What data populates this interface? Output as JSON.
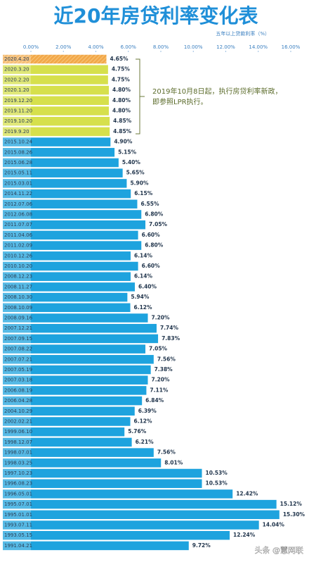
{
  "chart_data": {
    "type": "hbar",
    "title": "近20年房贷利率变化表",
    "subtitle": "五年以上贷款利率（%）",
    "annotation": [
      "2019年10月8日起，执行房贷利率新政，",
      "即参照LPR执行。"
    ],
    "watermark": "头条 @慧网联",
    "categories": [
      "2020.4.20",
      "2020.3.20",
      "2020.2.20",
      "2020.1.20",
      "2019.12.20",
      "2019.11.20",
      "2019.10.20",
      "2019.9.20",
      "2015.10.24",
      "2015.08.26",
      "2015.06.28",
      "2015.05.11",
      "2015.03.01",
      "2014.11.22",
      "2012.07.06",
      "2012.06.08",
      "2011.07.07",
      "2011.04.06",
      "2011.02.09",
      "2010.12.26",
      "2010.10.20",
      "2008.12.23",
      "2008.11.27",
      "2008.10.30",
      "2008.10.09",
      "2008.09.16",
      "2007.12.21",
      "2007.09.15",
      "2007.08.22",
      "2007.07.21",
      "2007.05.19",
      "2007.03.18",
      "2006.08.19",
      "2006.04.28",
      "2004.10.29",
      "2002.02.21",
      "1999.06.10",
      "1998.12.07",
      "1998.07.01",
      "1998.03.25",
      "1997.10.23",
      "1996.08.23",
      "1996.05.01",
      "1995.07.01",
      "1995.01.01",
      "1993.07.11",
      "1993.05.15",
      "1991.04.21"
    ],
    "values": [
      4.65,
      4.75,
      4.75,
      4.8,
      4.8,
      4.8,
      4.85,
      4.85,
      4.9,
      5.15,
      5.4,
      5.65,
      5.9,
      6.15,
      6.55,
      6.8,
      7.05,
      6.6,
      6.8,
      6.14,
      6.6,
      6.14,
      6.4,
      5.94,
      6.12,
      7.2,
      7.74,
      7.83,
      7.05,
      7.56,
      7.38,
      7.2,
      7.11,
      6.84,
      6.39,
      6.12,
      5.76,
      6.21,
      7.56,
      8.01,
      10.53,
      10.53,
      12.42,
      15.12,
      15.3,
      14.04,
      12.24,
      9.72
    ],
    "value_labels": [
      "4.65%",
      "4.75%",
      "4.75%",
      "4.80%",
      "4.80%",
      "4.80%",
      "4.85%",
      "4.85%",
      "4.90%",
      "5.15%",
      "5.40%",
      "5.65%",
      "5.90%",
      "6.15%",
      "6.55%",
      "6.80%",
      "7.05%",
      "6.60%",
      "6.80%",
      "6.14%",
      "6.60%",
      "6.14%",
      "6.40%",
      "5.94%",
      "6.12%",
      "7.20%",
      "7.74%",
      "7.83%",
      "7.05%",
      "7.56%",
      "7.38%",
      "7.20%",
      "7.11%",
      "6.84%",
      "6.39%",
      "6.12%",
      "5.76%",
      "6.21%",
      "7.56%",
      "8.01%",
      "10.53%",
      "10.53%",
      "12.42%",
      "15.12%",
      "15.30%",
      "14.04%",
      "12.24%",
      "9.72%"
    ],
    "colors": [
      "#f2a84a",
      "#d6e04c",
      "#d6e04c",
      "#d6e04c",
      "#d6e04c",
      "#d6e04c",
      "#d6e04c",
      "#d6e04c",
      "#1ea3de",
      "#1ea3de",
      "#1ea3de",
      "#1ea3de",
      "#1ea3de",
      "#1ea3de",
      "#1ea3de",
      "#1ea3de",
      "#1ea3de",
      "#1ea3de",
      "#1ea3de",
      "#1ea3de",
      "#1ea3de",
      "#1ea3de",
      "#1ea3de",
      "#1ea3de",
      "#1ea3de",
      "#1ea3de",
      "#1ea3de",
      "#1ea3de",
      "#1ea3de",
      "#1ea3de",
      "#1ea3de",
      "#1ea3de",
      "#1ea3de",
      "#1ea3de",
      "#1ea3de",
      "#1ea3de",
      "#1ea3de",
      "#1ea3de",
      "#1ea3de",
      "#1ea3de",
      "#1ea3de",
      "#1ea3de",
      "#1ea3de",
      "#1ea3de",
      "#1ea3de",
      "#1ea3de",
      "#1ea3de",
      "#1ea3de"
    ],
    "xlim": [
      0,
      16
    ],
    "xticks": [
      {
        "value": 0,
        "label": "0.00%"
      },
      {
        "value": 2,
        "label": "2.00%"
      },
      {
        "value": 4,
        "label": "4.00%"
      },
      {
        "value": 6,
        "label": "6.00%"
      },
      {
        "value": 8,
        "label": "8.00%"
      },
      {
        "value": 10,
        "label": "10.00%"
      },
      {
        "value": 12,
        "label": "12.00%"
      },
      {
        "value": 14,
        "label": "14.00%"
      },
      {
        "value": 16,
        "label": "16.00%"
      }
    ]
  }
}
